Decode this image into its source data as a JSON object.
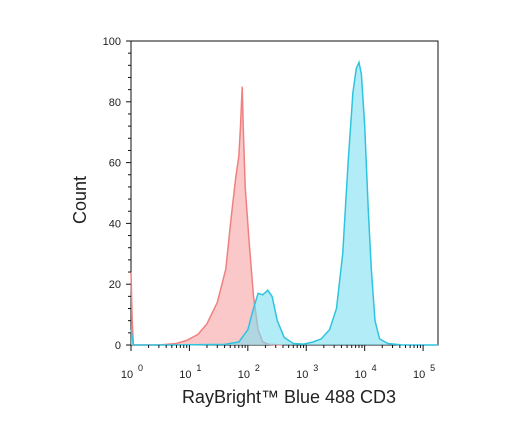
{
  "chart_data": {
    "type": "area",
    "xlabel": "RayBright™ Blue 488 CD3",
    "ylabel": "Count",
    "x_scale": "log",
    "xlim": [
      1,
      180000
    ],
    "ylim": [
      0,
      100
    ],
    "y_ticks": [
      {
        "value": 0,
        "label": "0"
      },
      {
        "value": 20,
        "label": "20"
      },
      {
        "value": 40,
        "label": "40"
      },
      {
        "value": 60,
        "label": "60"
      },
      {
        "value": 80,
        "label": "80"
      },
      {
        "value": 100,
        "label": "100"
      }
    ],
    "x_ticks": [
      {
        "value": 1,
        "base": "10",
        "exp": "0"
      },
      {
        "value": 10,
        "base": "10",
        "exp": "1"
      },
      {
        "value": 100,
        "base": "10",
        "exp": "2"
      },
      {
        "value": 1000,
        "base": "10",
        "exp": "3"
      },
      {
        "value": 10000,
        "base": "10",
        "exp": "4"
      },
      {
        "value": 100000,
        "base": "10",
        "exp": "5"
      }
    ],
    "grid": false,
    "legend": "none",
    "series": [
      {
        "color": "#f08080",
        "fill": "#f6a3a3",
        "points": [
          [
            1.0,
            24
          ],
          [
            1.05,
            8
          ],
          [
            1.1,
            0
          ],
          [
            3,
            0
          ],
          [
            6,
            0.5
          ],
          [
            9,
            1.5
          ],
          [
            14,
            3.5
          ],
          [
            20,
            7
          ],
          [
            30,
            14
          ],
          [
            42,
            25
          ],
          [
            52,
            42
          ],
          [
            62,
            55
          ],
          [
            70,
            62
          ],
          [
            75,
            72
          ],
          [
            80,
            85
          ],
          [
            84,
            70
          ],
          [
            90,
            52
          ],
          [
            105,
            34
          ],
          [
            125,
            16
          ],
          [
            150,
            5
          ],
          [
            180,
            1
          ],
          [
            230,
            0.2
          ],
          [
            400,
            0
          ]
        ]
      },
      {
        "color": "#2ec4e0",
        "fill": "#7fe0f2",
        "points": [
          [
            1.0,
            5
          ],
          [
            1.1,
            0
          ],
          [
            5,
            0
          ],
          [
            40,
            0.2
          ],
          [
            70,
            1
          ],
          [
            100,
            5
          ],
          [
            125,
            12
          ],
          [
            150,
            17
          ],
          [
            180,
            16.5
          ],
          [
            220,
            18
          ],
          [
            260,
            16
          ],
          [
            320,
            8
          ],
          [
            420,
            2.5
          ],
          [
            600,
            0.5
          ],
          [
            900,
            0.3
          ],
          [
            1300,
            1
          ],
          [
            1800,
            2
          ],
          [
            2500,
            5
          ],
          [
            3300,
            12
          ],
          [
            4200,
            30
          ],
          [
            5200,
            60
          ],
          [
            6300,
            83
          ],
          [
            7200,
            91
          ],
          [
            8000,
            93
          ],
          [
            8800,
            89
          ],
          [
            10000,
            72
          ],
          [
            11500,
            45
          ],
          [
            13000,
            25
          ],
          [
            15000,
            8
          ],
          [
            18000,
            2
          ],
          [
            25000,
            0.5
          ],
          [
            45000,
            0
          ],
          [
            180000,
            0
          ]
        ]
      }
    ]
  }
}
